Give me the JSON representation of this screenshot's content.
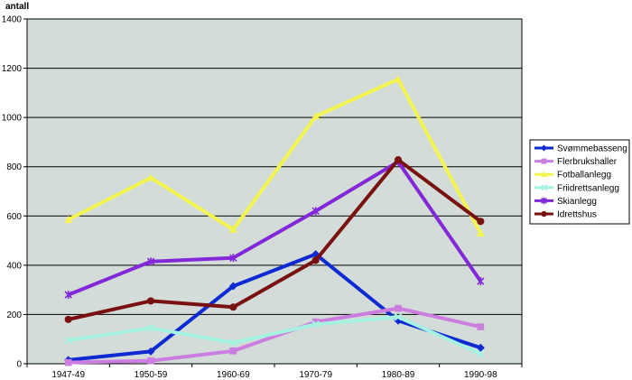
{
  "chart_data": {
    "type": "line",
    "ylabel": "antall",
    "ylim": [
      0,
      1400
    ],
    "ytick_step": 200,
    "grid": true,
    "plot_background": "#d3dcd8",
    "legend_position": "right",
    "categories": [
      "1947-49",
      "1950-59",
      "1960-69",
      "1970-79",
      "1980-89",
      "1990-98"
    ],
    "series": [
      {
        "name": "Svømmebasseng",
        "color": "#0d2ad3",
        "marker": "diamond",
        "values": [
          15,
          50,
          315,
          445,
          175,
          65
        ]
      },
      {
        "name": "Flerbrukshaller",
        "color": "#cc7ee0",
        "marker": "square",
        "values": [
          5,
          12,
          52,
          170,
          225,
          150
        ]
      },
      {
        "name": "Fotballanlegg",
        "color": "#f4f451",
        "marker": "triangle",
        "values": [
          585,
          755,
          545,
          1005,
          1155,
          530
        ]
      },
      {
        "name": "Friidrettsanlegg",
        "color": "#a6f2e0",
        "marker": "x",
        "values": [
          95,
          145,
          85,
          160,
          190,
          40
        ]
      },
      {
        "name": "Skianlegg",
        "color": "#8328d8",
        "marker": "star",
        "values": [
          280,
          415,
          430,
          620,
          820,
          335
        ]
      },
      {
        "name": "Idrettshus",
        "color": "#7a1111",
        "marker": "circle",
        "values": [
          180,
          255,
          230,
          420,
          828,
          578
        ]
      }
    ]
  }
}
